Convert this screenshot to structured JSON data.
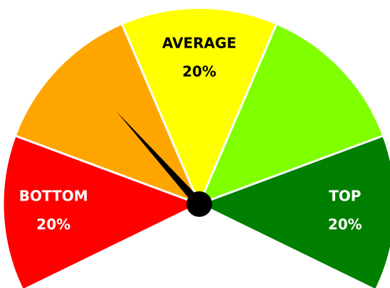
{
  "chart_data": {
    "type": "gauge",
    "categories": [
      "BOTTOM",
      null,
      "AVERAGE",
      null,
      "TOP"
    ],
    "values": [
      20,
      20,
      20,
      20,
      20
    ],
    "value_labels": [
      "20%",
      null,
      "20%",
      null,
      "20%"
    ],
    "colors": [
      "#ff0000",
      "#ffa500",
      "#ffff00",
      "#7fff00",
      "#007f00"
    ],
    "needle": 32,
    "ylim": [
      0,
      100
    ]
  }
}
